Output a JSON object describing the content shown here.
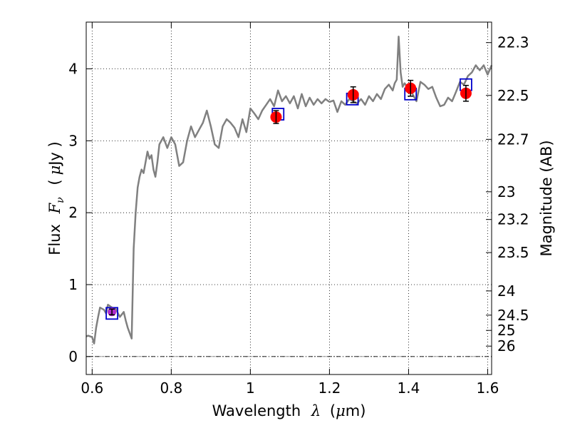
{
  "chart_data": {
    "type": "line",
    "title": "",
    "xlabel": {
      "prefix": "Wavelength",
      "symbol": "λ",
      "unit_open": "(",
      "unit_mu": "μ",
      "unit_rest": "m)"
    },
    "ylabel": {
      "prefix": "Flux",
      "symbol": "F",
      "subscript": "ν",
      "unit_open": "(",
      "unit_mu": "μ",
      "unit_rest": "Jy )"
    },
    "ylabel_right": "Magnitude (AB)",
    "xlim": [
      0.585,
      1.61
    ],
    "ylim": [
      -0.25,
      4.65
    ],
    "grid": true,
    "x_ticks": [
      0.6,
      0.8,
      1.0,
      1.2,
      1.4,
      1.6
    ],
    "x_tick_labels": [
      "0.6",
      "0.8",
      "1",
      "1.2",
      "1.4",
      "1.6"
    ],
    "y_ticks": [
      0,
      1,
      2,
      3,
      4
    ],
    "y_tick_labels": [
      "0",
      "1",
      "2",
      "3",
      "4"
    ],
    "right_ticks": [
      {
        "label": "22.3",
        "mag": 22.3
      },
      {
        "label": "22.5",
        "mag": 22.5
      },
      {
        "label": "22.7",
        "mag": 22.7
      },
      {
        "label": "23",
        "mag": 23.0
      },
      {
        "label": "23.2",
        "mag": 23.2
      },
      {
        "label": "23.5",
        "mag": 23.5
      },
      {
        "label": "24",
        "mag": 24.0
      },
      {
        "label": "24.5",
        "mag": 24.5
      },
      {
        "label": "25",
        "mag": 25.0
      },
      {
        "label": "26",
        "mag": 26.0
      }
    ],
    "zero_line": {
      "y": 0,
      "style": "dash-dot"
    },
    "model_spectrum": {
      "color": "#808080",
      "x": [
        0.585,
        0.59,
        0.6,
        0.605,
        0.61,
        0.615,
        0.62,
        0.63,
        0.635,
        0.64,
        0.65,
        0.66,
        0.67,
        0.68,
        0.685,
        0.69,
        0.7,
        0.705,
        0.71,
        0.715,
        0.72,
        0.725,
        0.73,
        0.74,
        0.745,
        0.75,
        0.755,
        0.76,
        0.765,
        0.77,
        0.78,
        0.79,
        0.8,
        0.81,
        0.82,
        0.83,
        0.84,
        0.85,
        0.86,
        0.87,
        0.88,
        0.89,
        0.9,
        0.91,
        0.92,
        0.93,
        0.94,
        0.95,
        0.96,
        0.97,
        0.98,
        0.99,
        1.0,
        1.01,
        1.02,
        1.03,
        1.04,
        1.05,
        1.06,
        1.07,
        1.08,
        1.09,
        1.1,
        1.11,
        1.12,
        1.13,
        1.14,
        1.15,
        1.16,
        1.17,
        1.18,
        1.19,
        1.2,
        1.21,
        1.22,
        1.23,
        1.24,
        1.25,
        1.26,
        1.27,
        1.28,
        1.29,
        1.3,
        1.31,
        1.32,
        1.33,
        1.34,
        1.35,
        1.36,
        1.365,
        1.37,
        1.375,
        1.38,
        1.385,
        1.39,
        1.4,
        1.41,
        1.42,
        1.43,
        1.44,
        1.45,
        1.46,
        1.47,
        1.48,
        1.49,
        1.5,
        1.51,
        1.52,
        1.53,
        1.54,
        1.55,
        1.56,
        1.57,
        1.58,
        1.59,
        1.6,
        1.61
      ],
      "y": [
        0.28,
        0.29,
        0.27,
        0.18,
        0.4,
        0.55,
        0.68,
        0.65,
        0.6,
        0.72,
        0.68,
        0.66,
        0.55,
        0.62,
        0.5,
        0.4,
        0.25,
        1.5,
        2.0,
        2.35,
        2.5,
        2.6,
        2.55,
        2.85,
        2.75,
        2.8,
        2.6,
        2.5,
        2.7,
        2.95,
        3.05,
        2.9,
        3.05,
        2.95,
        2.65,
        2.7,
        3.0,
        3.2,
        3.05,
        3.15,
        3.25,
        3.42,
        3.2,
        2.95,
        2.9,
        3.2,
        3.3,
        3.25,
        3.18,
        3.05,
        3.3,
        3.12,
        3.45,
        3.38,
        3.3,
        3.42,
        3.5,
        3.58,
        3.48,
        3.7,
        3.55,
        3.62,
        3.52,
        3.62,
        3.45,
        3.65,
        3.48,
        3.6,
        3.5,
        3.58,
        3.52,
        3.58,
        3.54,
        3.56,
        3.4,
        3.55,
        3.5,
        3.58,
        3.55,
        3.52,
        3.58,
        3.5,
        3.62,
        3.55,
        3.65,
        3.58,
        3.72,
        3.78,
        3.7,
        3.8,
        3.85,
        4.45,
        3.95,
        3.75,
        3.8,
        3.72,
        3.65,
        3.55,
        3.82,
        3.78,
        3.72,
        3.75,
        3.6,
        3.48,
        3.5,
        3.6,
        3.55,
        3.68,
        3.82,
        3.78,
        3.9,
        3.95,
        4.05,
        3.98,
        4.05,
        3.92,
        4.05
      ]
    },
    "observed_points": {
      "color": "#ff0000",
      "x": [
        0.65,
        1.065,
        1.26,
        1.405,
        1.545
      ],
      "y": [
        0.62,
        3.33,
        3.64,
        3.73,
        3.66
      ],
      "err": [
        0.04,
        0.09,
        0.11,
        0.11,
        0.11
      ]
    },
    "model_points": {
      "color": "#0000cc",
      "marker": "open-square",
      "x": [
        0.65,
        1.07,
        1.258,
        1.405,
        1.545
      ],
      "y": [
        0.6,
        3.37,
        3.58,
        3.65,
        3.78
      ]
    }
  }
}
